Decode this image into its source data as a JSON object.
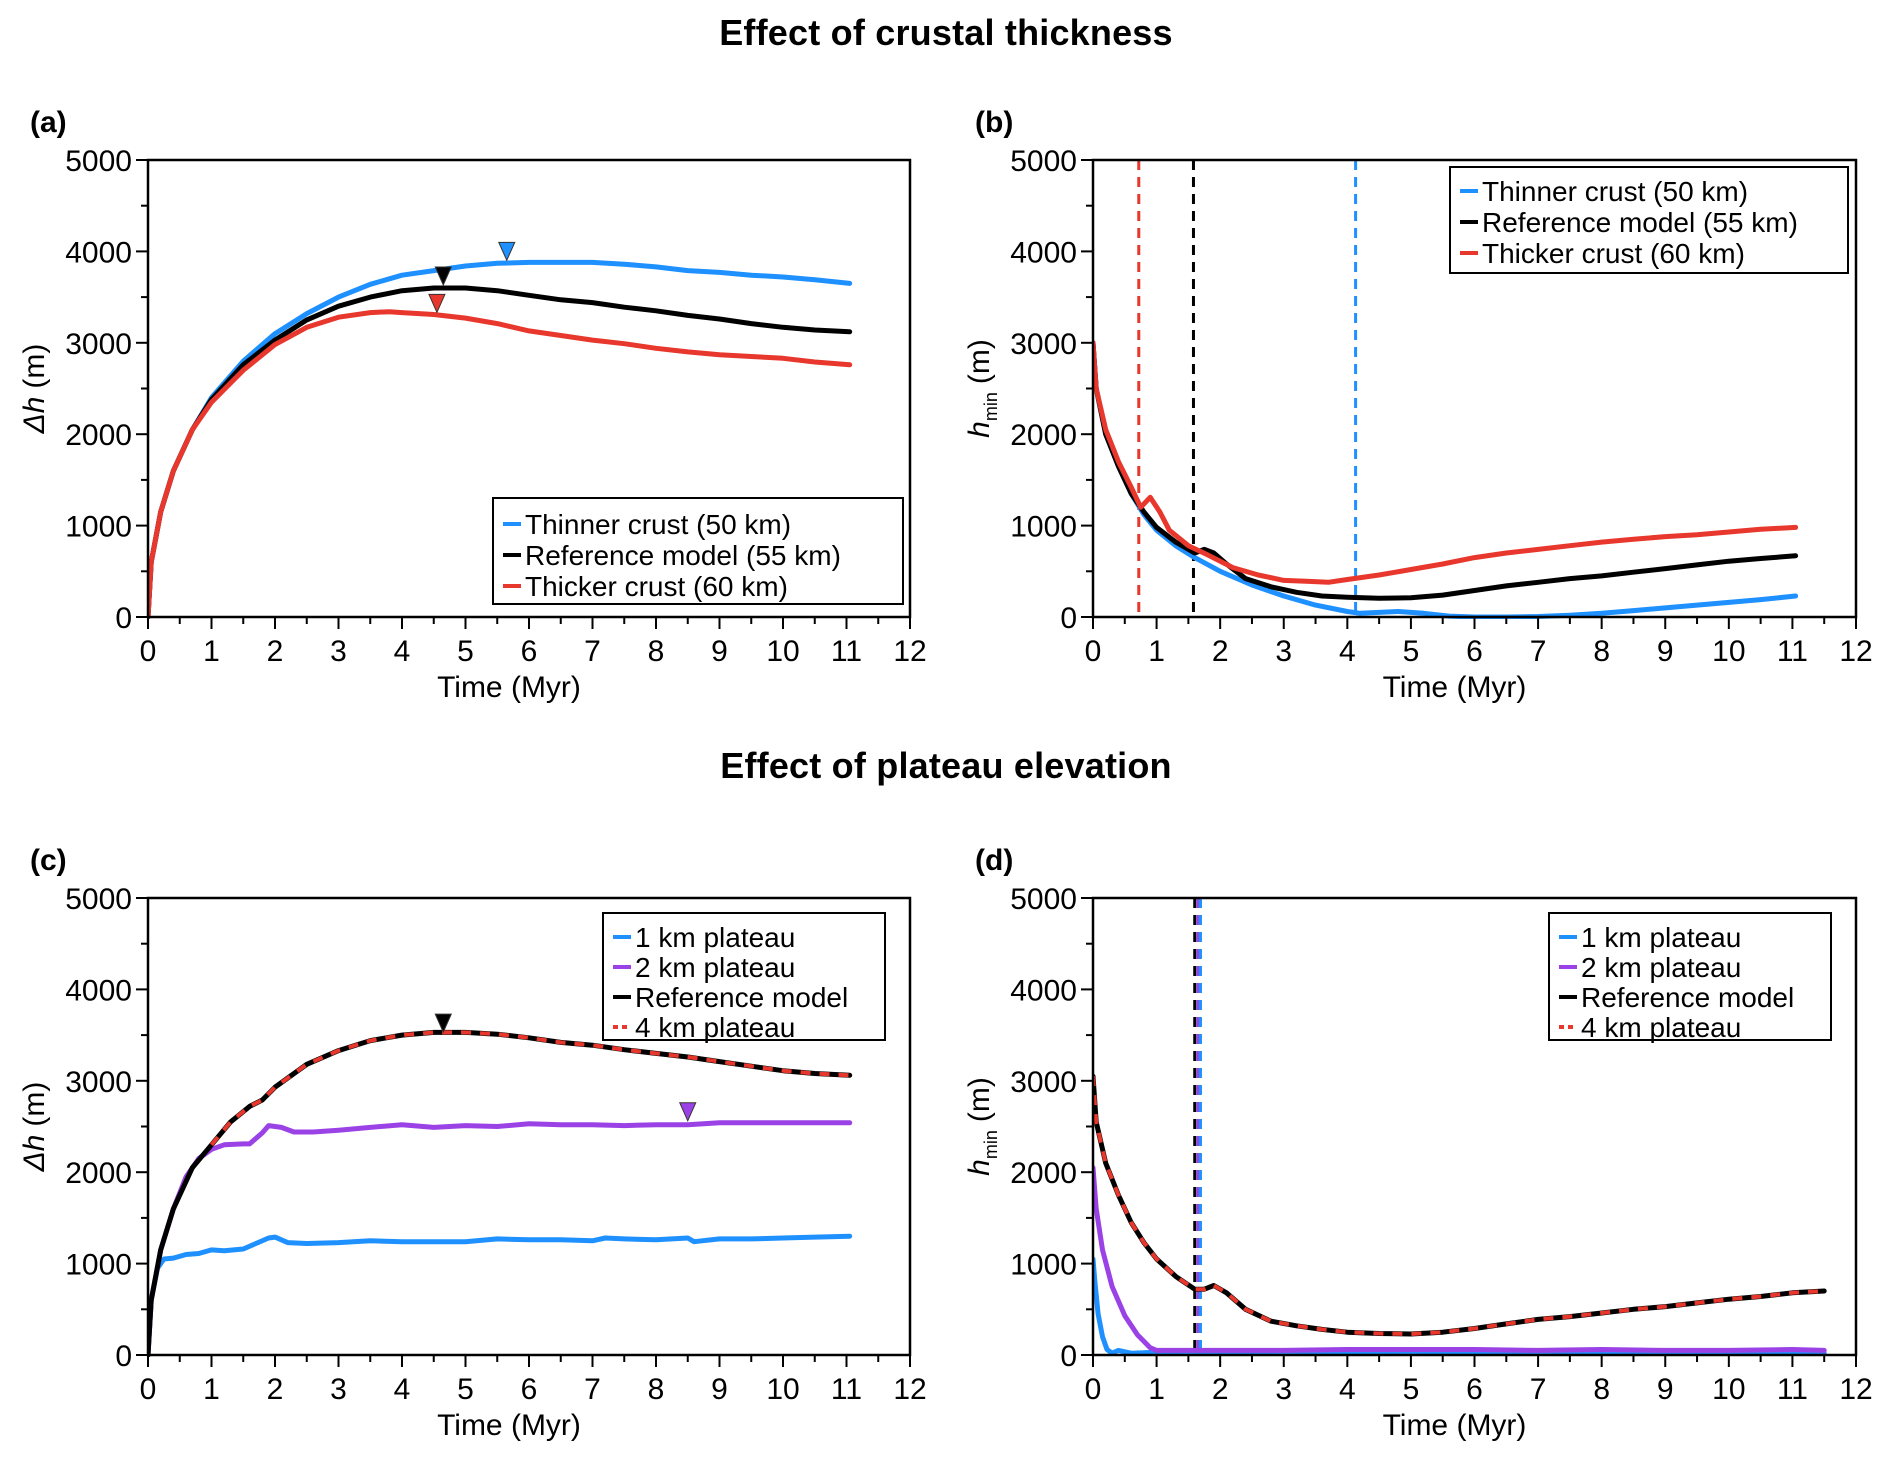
{
  "section_titles": [
    "Effect of crustal thickness",
    "Effect of plateau elevation"
  ],
  "colors": {
    "blue": "#1e90ff",
    "black": "#000000",
    "red": "#e8372c",
    "purple": "#9b42e6"
  },
  "chart_data": [
    {
      "id": "a",
      "panel_label": "(a)",
      "type": "line",
      "title": "",
      "xlabel": "Time (Myr)",
      "ylabel": "Δh (m)",
      "xlim": [
        0,
        12
      ],
      "ylim": [
        0,
        5000
      ],
      "xticks": [
        0,
        1,
        2,
        3,
        4,
        5,
        6,
        7,
        8,
        9,
        10,
        11,
        12
      ],
      "yticks": [
        0,
        1000,
        2000,
        3000,
        4000,
        5000
      ],
      "grid": false,
      "legend_position": "bottom-right",
      "series": [
        {
          "name": "Thinner crust (50 km)",
          "color": "#1e90ff",
          "dash": false,
          "x": [
            0,
            0.05,
            0.2,
            0.4,
            0.7,
            1,
            1.5,
            2,
            2.5,
            3,
            3.5,
            4,
            4.5,
            5,
            5.5,
            6,
            6.5,
            7,
            7.5,
            8,
            8.5,
            9,
            9.5,
            10,
            10.5,
            11.05
          ],
          "y": [
            0,
            600,
            1150,
            1600,
            2050,
            2400,
            2800,
            3100,
            3320,
            3500,
            3640,
            3740,
            3790,
            3840,
            3870,
            3880,
            3880,
            3880,
            3860,
            3830,
            3790,
            3770,
            3740,
            3720,
            3690,
            3650
          ]
        },
        {
          "name": "Reference model (55 km)",
          "color": "#000000",
          "dash": false,
          "x": [
            0,
            0.05,
            0.2,
            0.4,
            0.7,
            1,
            1.5,
            2,
            2.5,
            3,
            3.5,
            4,
            4.5,
            5,
            5.5,
            6,
            6.5,
            7,
            7.5,
            8,
            8.5,
            9,
            9.5,
            10,
            10.5,
            11.05
          ],
          "y": [
            0,
            600,
            1150,
            1600,
            2050,
            2380,
            2760,
            3030,
            3250,
            3400,
            3500,
            3570,
            3600,
            3600,
            3570,
            3520,
            3470,
            3440,
            3390,
            3350,
            3300,
            3260,
            3210,
            3170,
            3140,
            3120
          ]
        },
        {
          "name": "Thicker crust (60 km)",
          "color": "#e8372c",
          "dash": false,
          "x": [
            0,
            0.05,
            0.2,
            0.4,
            0.7,
            1,
            1.5,
            2,
            2.5,
            3,
            3.5,
            3.8,
            4,
            4.5,
            5,
            5.5,
            6,
            6.5,
            7,
            7.5,
            8,
            8.5,
            9,
            9.5,
            10,
            10.5,
            11.05
          ],
          "y": [
            0,
            600,
            1150,
            1600,
            2050,
            2350,
            2700,
            2980,
            3170,
            3280,
            3330,
            3340,
            3330,
            3310,
            3270,
            3210,
            3130,
            3080,
            3030,
            2990,
            2940,
            2900,
            2870,
            2850,
            2830,
            2790,
            2760
          ]
        }
      ],
      "markers": [
        {
          "x": 5.65,
          "y": 3990,
          "color": "#1e90ff"
        },
        {
          "x": 4.65,
          "y": 3720,
          "color": "#000000"
        },
        {
          "x": 4.55,
          "y": 3420,
          "color": "#e8372c"
        }
      ],
      "vlines": []
    },
    {
      "id": "b",
      "panel_label": "(b)",
      "type": "line",
      "title": "",
      "xlabel": "Time (Myr)",
      "ylabel": "h_min (m)",
      "ylabel_main": "h",
      "ylabel_sub": "min",
      "ylabel_unit": "(m)",
      "xlim": [
        0,
        12
      ],
      "ylim": [
        0,
        5000
      ],
      "xticks": [
        0,
        1,
        2,
        3,
        4,
        5,
        6,
        7,
        8,
        9,
        10,
        11,
        12
      ],
      "yticks": [
        0,
        1000,
        2000,
        3000,
        4000,
        5000
      ],
      "grid": false,
      "legend_position": "top-right",
      "series": [
        {
          "name": "Thinner crust (50 km)",
          "color": "#1e90ff",
          "dash": false,
          "x": [
            0,
            0.05,
            0.2,
            0.4,
            0.6,
            0.8,
            1,
            1.3,
            1.6,
            2,
            2.5,
            3,
            3.5,
            4,
            4.2,
            4.5,
            4.8,
            5.2,
            5.6,
            6,
            6.5,
            7,
            7.5,
            8,
            8.5,
            9,
            9.5,
            10,
            10.5,
            11.05
          ],
          "y": [
            3000,
            2500,
            2000,
            1650,
            1350,
            1120,
            950,
            780,
            650,
            500,
            350,
            230,
            130,
            60,
            40,
            50,
            60,
            40,
            10,
            0,
            0,
            5,
            20,
            40,
            70,
            100,
            130,
            160,
            190,
            230
          ]
        },
        {
          "name": "Reference model (55 km)",
          "color": "#000000",
          "dash": false,
          "x": [
            0,
            0.05,
            0.2,
            0.4,
            0.6,
            0.8,
            1,
            1.3,
            1.6,
            1.75,
            1.9,
            2.1,
            2.4,
            2.8,
            3.2,
            3.6,
            4,
            4.5,
            5,
            5.5,
            6,
            6.5,
            7,
            7.5,
            8,
            8.5,
            9,
            9.5,
            10,
            10.5,
            11.05
          ],
          "y": [
            3000,
            2500,
            2000,
            1650,
            1350,
            1150,
            980,
            820,
            700,
            740,
            700,
            580,
            420,
            330,
            270,
            230,
            215,
            205,
            210,
            240,
            290,
            340,
            380,
            420,
            450,
            490,
            530,
            570,
            610,
            640,
            670
          ]
        },
        {
          "name": "Thicker crust (60 km)",
          "color": "#e8372c",
          "dash": false,
          "x": [
            0,
            0.05,
            0.2,
            0.4,
            0.6,
            0.75,
            0.9,
            1.05,
            1.2,
            1.5,
            1.8,
            2.2,
            2.6,
            3,
            3.4,
            3.7,
            4,
            4.5,
            5,
            5.5,
            6,
            6.5,
            7,
            7.5,
            8,
            8.5,
            9,
            9.5,
            10,
            10.5,
            11.05
          ],
          "y": [
            3000,
            2500,
            2050,
            1700,
            1420,
            1200,
            1310,
            1150,
            950,
            780,
            680,
            540,
            460,
            400,
            390,
            380,
            410,
            460,
            520,
            580,
            650,
            700,
            740,
            780,
            820,
            850,
            880,
            900,
            930,
            960,
            980
          ]
        }
      ],
      "markers": [],
      "vlines": [
        {
          "x": 0.72,
          "color": "#e8372c"
        },
        {
          "x": 1.58,
          "color": "#000000"
        },
        {
          "x": 4.13,
          "color": "#1e90ff"
        }
      ]
    },
    {
      "id": "c",
      "panel_label": "(c)",
      "type": "line",
      "title": "",
      "xlabel": "Time (Myr)",
      "ylabel": "Δh (m)",
      "xlim": [
        0,
        12
      ],
      "ylim": [
        0,
        5000
      ],
      "xticks": [
        0,
        1,
        2,
        3,
        4,
        5,
        6,
        7,
        8,
        9,
        10,
        11,
        12
      ],
      "yticks": [
        0,
        1000,
        2000,
        3000,
        4000,
        5000
      ],
      "grid": false,
      "legend_position": "top-right",
      "series": [
        {
          "name": "1 km plateau",
          "color": "#1e90ff",
          "dash": false,
          "x": [
            0,
            0.05,
            0.15,
            0.25,
            0.4,
            0.6,
            0.8,
            1,
            1.2,
            1.5,
            1.7,
            1.9,
            2,
            2.2,
            2.5,
            3,
            3.5,
            4,
            4.5,
            5,
            5.5,
            6,
            6.5,
            7,
            7.2,
            7.5,
            8,
            8.5,
            8.6,
            9,
            9.5,
            10,
            10.5,
            11.05
          ],
          "y": [
            0,
            600,
            950,
            1050,
            1060,
            1100,
            1110,
            1150,
            1140,
            1160,
            1220,
            1280,
            1290,
            1230,
            1220,
            1230,
            1250,
            1240,
            1240,
            1240,
            1270,
            1260,
            1260,
            1250,
            1280,
            1270,
            1260,
            1280,
            1240,
            1270,
            1270,
            1280,
            1290,
            1300
          ]
        },
        {
          "name": "2 km plateau",
          "color": "#9b42e6",
          "dash": false,
          "x": [
            0,
            0.05,
            0.2,
            0.4,
            0.6,
            0.8,
            1,
            1.2,
            1.5,
            1.6,
            1.8,
            1.9,
            2.1,
            2.3,
            2.6,
            3,
            3.5,
            4,
            4.5,
            5,
            5.5,
            6,
            6.5,
            7,
            7.5,
            8,
            8.5,
            9,
            9.5,
            10,
            10.5,
            11.05
          ],
          "y": [
            0,
            600,
            1150,
            1600,
            1950,
            2150,
            2250,
            2300,
            2310,
            2310,
            2430,
            2510,
            2490,
            2440,
            2440,
            2460,
            2490,
            2520,
            2490,
            2510,
            2500,
            2530,
            2520,
            2520,
            2510,
            2520,
            2520,
            2540,
            2540,
            2540,
            2540,
            2540
          ]
        },
        {
          "name": "Reference model",
          "color": "#000000",
          "dash": false,
          "x": [
            0,
            0.05,
            0.2,
            0.4,
            0.7,
            1,
            1.3,
            1.6,
            1.8,
            2,
            2.5,
            3,
            3.5,
            4,
            4.5,
            5,
            5.5,
            6,
            6.5,
            7,
            7.5,
            8,
            8.5,
            9,
            9.5,
            10,
            10.5,
            11.05
          ],
          "y": [
            0,
            600,
            1150,
            1600,
            2050,
            2300,
            2550,
            2720,
            2790,
            2930,
            3180,
            3330,
            3440,
            3500,
            3530,
            3530,
            3510,
            3470,
            3420,
            3390,
            3340,
            3300,
            3260,
            3210,
            3160,
            3110,
            3080,
            3060
          ]
        },
        {
          "name": "4 km plateau",
          "color": "#e8372c",
          "dash": true,
          "x": [
            1,
            1.3,
            1.6,
            1.8,
            2,
            2.5,
            3,
            3.5,
            4,
            4.5,
            5,
            5.5,
            6,
            6.5,
            7,
            7.5,
            8,
            8.5,
            9,
            9.5,
            10,
            10.5,
            11.05
          ],
          "y": [
            2300,
            2550,
            2720,
            2790,
            2930,
            3180,
            3330,
            3440,
            3500,
            3530,
            3530,
            3510,
            3470,
            3420,
            3390,
            3340,
            3300,
            3260,
            3210,
            3160,
            3110,
            3080,
            3060
          ]
        }
      ],
      "markers": [
        {
          "x": 4.65,
          "y": 3620,
          "color": "#000000"
        },
        {
          "x": 8.5,
          "y": 2650,
          "color": "#9b42e6"
        }
      ],
      "vlines": []
    },
    {
      "id": "d",
      "panel_label": "(d)",
      "type": "line",
      "title": "",
      "xlabel": "Time (Myr)",
      "ylabel": "h_min (m)",
      "ylabel_main": "h",
      "ylabel_sub": "min",
      "ylabel_unit": "(m)",
      "xlim": [
        0,
        12
      ],
      "ylim": [
        0,
        5000
      ],
      "xticks": [
        0,
        1,
        2,
        3,
        4,
        5,
        6,
        7,
        8,
        9,
        10,
        11,
        12
      ],
      "yticks": [
        0,
        1000,
        2000,
        3000,
        4000,
        5000
      ],
      "grid": false,
      "legend_position": "top-right",
      "series": [
        {
          "name": "1 km plateau",
          "color": "#1e90ff",
          "dash": false,
          "x": [
            0,
            0.03,
            0.08,
            0.15,
            0.22,
            0.3,
            0.4,
            0.6,
            1,
            1.5,
            2,
            3,
            4,
            5,
            6,
            7,
            8,
            9,
            10,
            11,
            11.5
          ],
          "y": [
            1050,
            800,
            450,
            200,
            60,
            20,
            50,
            20,
            30,
            40,
            30,
            40,
            30,
            40,
            20,
            40,
            30,
            20,
            30,
            30,
            20
          ]
        },
        {
          "name": "2 km plateau",
          "color": "#9b42e6",
          "dash": false,
          "x": [
            0,
            0.05,
            0.15,
            0.3,
            0.5,
            0.7,
            0.9,
            1,
            1.5,
            2,
            3,
            4,
            5,
            6,
            7,
            8,
            9,
            10,
            11,
            11.5
          ],
          "y": [
            2050,
            1600,
            1150,
            750,
            430,
            220,
            80,
            50,
            50,
            50,
            50,
            60,
            60,
            60,
            50,
            60,
            50,
            50,
            60,
            50
          ]
        },
        {
          "name": "Reference model",
          "color": "#000000",
          "dash": false,
          "x": [
            0,
            0.05,
            0.2,
            0.4,
            0.6,
            0.8,
            1,
            1.3,
            1.6,
            1.75,
            1.9,
            2.1,
            2.4,
            2.8,
            3.2,
            3.6,
            4,
            4.5,
            5,
            5.5,
            6,
            6.5,
            7,
            7.5,
            8,
            8.5,
            9,
            9.5,
            10,
            10.5,
            11,
            11.5
          ],
          "y": [
            3050,
            2550,
            2100,
            1750,
            1450,
            1230,
            1050,
            860,
            720,
            720,
            760,
            680,
            500,
            370,
            320,
            280,
            250,
            235,
            230,
            250,
            290,
            340,
            390,
            420,
            460,
            500,
            530,
            570,
            610,
            640,
            680,
            700
          ]
        },
        {
          "name": "4 km plateau",
          "color": "#e8372c",
          "dash": true,
          "x": [
            0,
            0.05,
            0.2,
            0.4,
            0.6,
            0.8,
            1,
            1.3,
            1.6,
            1.75,
            1.9,
            2.1,
            2.4,
            2.8,
            3.2,
            3.6,
            4,
            4.5,
            5,
            5.5,
            6,
            6.5,
            7,
            7.5,
            8,
            8.5,
            9,
            9.5,
            10,
            10.5,
            11,
            11.5
          ],
          "y": [
            3050,
            2550,
            2100,
            1750,
            1450,
            1230,
            1050,
            860,
            720,
            720,
            760,
            680,
            500,
            370,
            320,
            280,
            250,
            235,
            230,
            250,
            290,
            340,
            390,
            420,
            460,
            500,
            530,
            570,
            610,
            640,
            680,
            700
          ]
        }
      ],
      "markers": [],
      "vlines": [
        {
          "x": 1.6,
          "color": "#000000"
        },
        {
          "x": 1.65,
          "color": "#9b42e6"
        },
        {
          "x": 1.69,
          "color": "#1e90ff"
        }
      ]
    }
  ]
}
